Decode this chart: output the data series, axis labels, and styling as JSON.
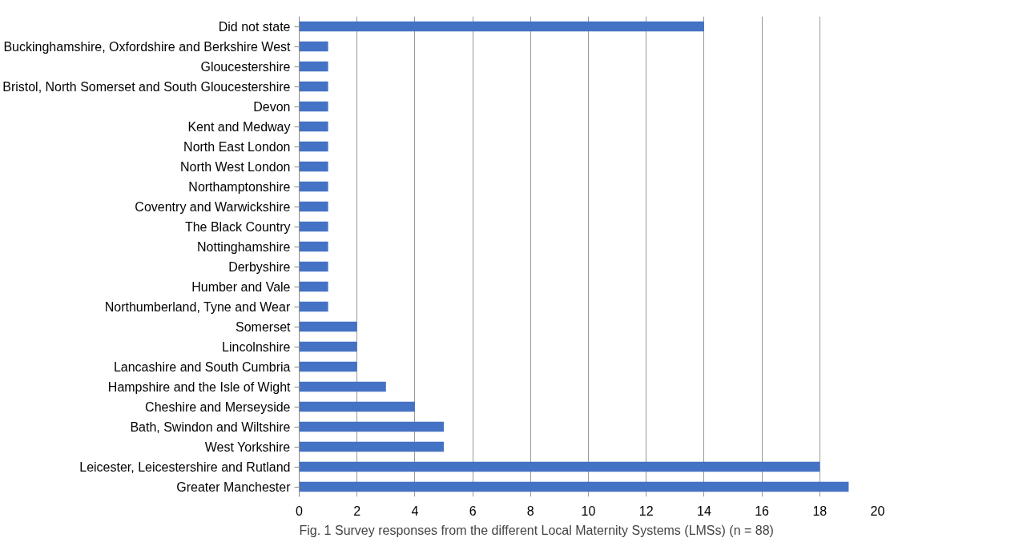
{
  "chart_data": {
    "type": "bar",
    "orientation": "horizontal",
    "categories": [
      "Did not state",
      "Buckinghamshire, Oxfordshire and Berkshire West",
      "Gloucestershire",
      "Bristol, North Somerset and South Gloucestershire",
      "Devon",
      "Kent and Medway",
      "North East London",
      "North West London",
      "Northamptonshire",
      "Coventry and Warwickshire",
      "The Black Country",
      "Nottinghamshire",
      "Derbyshire",
      "Humber and Vale",
      "Northumberland, Tyne and Wear",
      "Somerset",
      "Lincolnshire",
      "Lancashire and South Cumbria",
      "Hampshire and the Isle of Wight",
      "Cheshire and Merseyside",
      "Bath, Swindon and Wiltshire",
      "West Yorkshire",
      "Leicester, Leicestershire and Rutland",
      "Greater Manchester"
    ],
    "values": [
      14,
      1,
      1,
      1,
      1,
      1,
      1,
      1,
      1,
      1,
      1,
      1,
      1,
      1,
      1,
      2,
      2,
      2,
      3,
      4,
      5,
      5,
      18,
      19
    ],
    "color": "#4472c4",
    "xlim": [
      0,
      20
    ],
    "xticks": [
      0,
      2,
      4,
      6,
      8,
      10,
      12,
      14,
      16,
      18,
      20
    ],
    "grid": "x",
    "annotations": [
      "Fig. 1 Survey responses from the different Local Maternity Systems (LMSs) (n = 88)"
    ]
  }
}
